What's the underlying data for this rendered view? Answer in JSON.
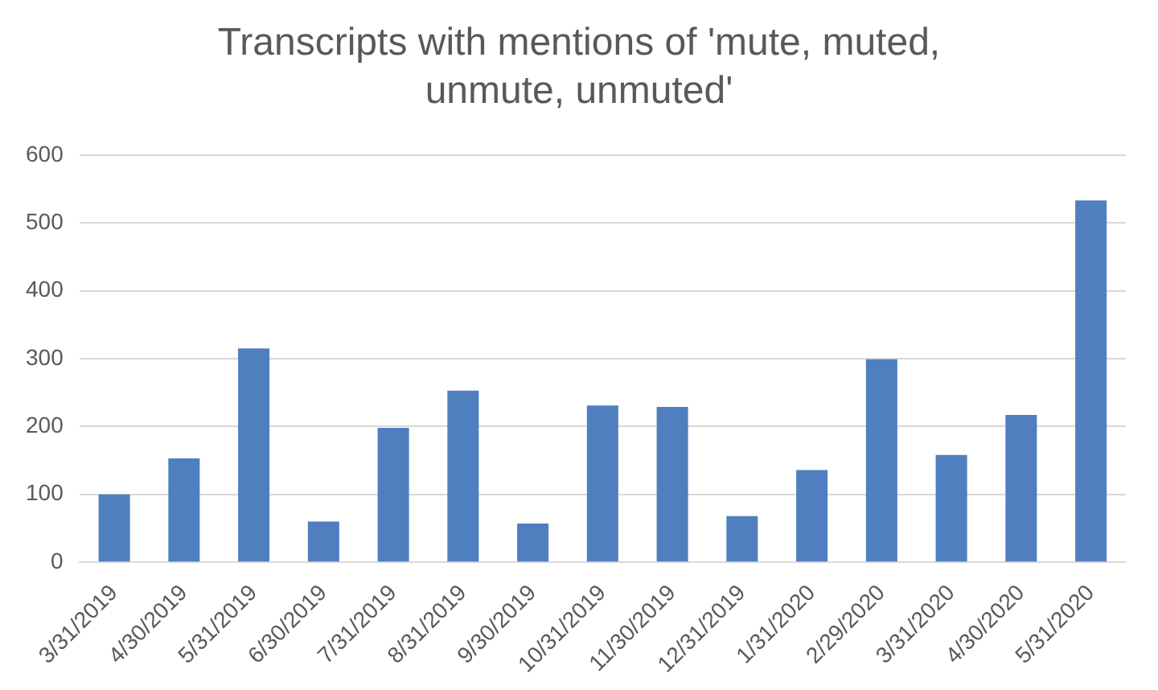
{
  "chart_data": {
    "type": "bar",
    "title": "Transcripts with mentions of 'mute, muted, unmute, unmuted'",
    "categories": [
      "3/31/2019",
      "4/30/2019",
      "5/31/2019",
      "6/30/2019",
      "7/31/2019",
      "8/31/2019",
      "9/30/2019",
      "10/31/2019",
      "11/30/2019",
      "12/31/2019",
      "1/31/2020",
      "2/29/2020",
      "3/31/2020",
      "4/30/2020",
      "5/31/2020"
    ],
    "values": [
      100,
      153,
      315,
      60,
      198,
      253,
      57,
      231,
      229,
      68,
      136,
      299,
      158,
      217,
      533
    ],
    "color": "#4f7fbf",
    "ylim": [
      0,
      600
    ],
    "yticks": [
      0,
      100,
      200,
      300,
      400,
      500,
      600
    ],
    "grid": "y"
  }
}
